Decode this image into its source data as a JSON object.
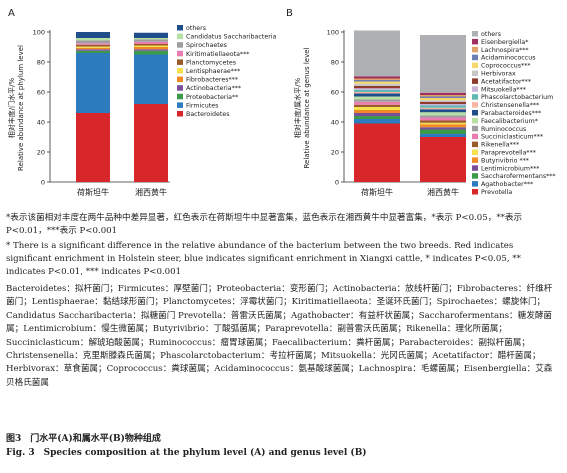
{
  "chart_data": [
    {
      "type": "bar",
      "stacked": true,
      "panel_label": "A",
      "ylabel_cn": "相对丰度/门水平/%",
      "ylabel_en": "Relative abundance at phylum level",
      "categories": [
        "荷斯坦牛",
        "湘西黄牛"
      ],
      "ylim": [
        0,
        100
      ],
      "yticks": [
        0,
        20,
        40,
        60,
        80,
        100
      ],
      "legend_position": "right",
      "series": [
        {
          "name": "Bacteroidetes",
          "values": [
            46,
            52
          ]
        },
        {
          "name": "Firmicutes",
          "values": [
            40,
            33
          ]
        },
        {
          "name": "Proteobacteria**",
          "values": [
            1.5,
            2.5
          ]
        },
        {
          "name": "Actinobacteria***",
          "values": [
            1,
            1
          ]
        },
        {
          "name": "Fibrobacteres***",
          "values": [
            1,
            1.5
          ]
        },
        {
          "name": "Lentisphaerae***",
          "values": [
            0.8,
            1
          ]
        },
        {
          "name": "Planctomycetes",
          "values": [
            1.2,
            1
          ]
        },
        {
          "name": "Kiritimatiellaeota***",
          "values": [
            1,
            1.5
          ]
        },
        {
          "name": "Spirochaetes",
          "values": [
            2,
            1.5
          ]
        },
        {
          "name": "Candidatus Saccharibacteria",
          "values": [
            1.5,
            1
          ]
        },
        {
          "name": "others",
          "values": [
            4,
            3.5
          ]
        }
      ]
    },
    {
      "type": "bar",
      "stacked": true,
      "panel_label": "B",
      "ylabel_cn": "相对丰度/属水平/%",
      "ylabel_en": "Relative abundance at genus level",
      "categories": [
        "荷斯坦牛",
        "湘西黄牛"
      ],
      "ylim": [
        0,
        100
      ],
      "yticks": [
        0,
        20,
        40,
        60,
        80,
        100
      ],
      "legend_position": "right",
      "series": [
        {
          "name": "Prevotella",
          "values": [
            39,
            30
          ]
        },
        {
          "name": "Agathobacter***",
          "values": [
            3,
            2
          ]
        },
        {
          "name": "Saccharofermentans***",
          "values": [
            2,
            3
          ]
        },
        {
          "name": "Lentimicrobium***",
          "values": [
            2,
            1.5
          ]
        },
        {
          "name": "Butyrivibrio ***",
          "values": [
            2,
            2
          ]
        },
        {
          "name": "Paraprevotella***",
          "values": [
            2,
            1
          ]
        },
        {
          "name": "Rikenella***",
          "values": [
            1.5,
            1.5
          ]
        },
        {
          "name": "Succiniclasticum***",
          "values": [
            2,
            2
          ]
        },
        {
          "name": "Ruminococcus",
          "values": [
            1.5,
            1.5
          ]
        },
        {
          "name": "Faecalibacterium*",
          "values": [
            2,
            2
          ]
        },
        {
          "name": "Parabacteroides***",
          "values": [
            2,
            2
          ]
        },
        {
          "name": "Christensenella***",
          "values": [
            1,
            1
          ]
        },
        {
          "name": "Phascolarctobacterium",
          "values": [
            1.5,
            1.5
          ]
        },
        {
          "name": "Mitsuokella***",
          "values": [
            1,
            1
          ]
        },
        {
          "name": "Acetatifactor***",
          "values": [
            1.5,
            1.5
          ]
        },
        {
          "name": "Herbivorax",
          "values": [
            1.5,
            1
          ]
        },
        {
          "name": "Coprococcus***",
          "values": [
            1.5,
            1.5
          ]
        },
        {
          "name": "Acidaminococcus",
          "values": [
            1,
            1
          ]
        },
        {
          "name": "Lachnospira***",
          "values": [
            1,
            1
          ]
        },
        {
          "name": "Eisenbergiella*",
          "values": [
            1.5,
            1.5
          ]
        },
        {
          "name": "others",
          "values": [
            30.5,
            38.5
          ]
        }
      ]
    }
  ],
  "colors": [
    "#d8272a",
    "#2d7cbf",
    "#3c9a4a",
    "#7a4f9c",
    "#f08a24",
    "#f4e14d",
    "#9b5a2a",
    "#e97db2",
    "#9e9e9e",
    "#b7e0a5",
    "#1f4e8a",
    "#f7b7a3",
    "#5fb8b2",
    "#c9b3d9",
    "#8f3b2e",
    "#c7c7c7",
    "#f5d76e",
    "#6c7fb3",
    "#e0a36a",
    "#a03060",
    "#aeb0b3"
  ],
  "text": {
    "note_cn": "*表示该菌相对丰度在两牛品种中差异显著，红色表示在荷斯坦牛中显著富集，蓝色表示在湘西黄牛中显著富集，*表示 P<0.05，**表示 P<0.01，***表示 P<0.001",
    "note_en": "* There is a significant difference in the relative abundance of the bacterium between the two breeds. Red indicates significant enrichment in Holstein steer, blue indicates significant enrichment in Xiangxi cattle, * indicates P<0.05, ** indicates P<0.01, *** indicates P<0.001",
    "abbr": "Bacteroidetes：拟杆菌门；Firmicutes：厚壁菌门；Proteobacteria：变形菌门；Actinobacteria：放线杆菌门；Fibrobacteres：纤维杆菌门；Lentisphaerae：黏结球形菌门；Planctomycetes：浮霉状菌门；Kiritimatiellaeota：圣诞环氏菌门；Spirochaetes：螺旋体门；Candidatus Saccharibacteria：拟糖菌门 Prevotella：普雷沃氏菌属；Agathobacter：有益杆状菌属；Saccharofermentans：糖发酵菌属；Lentimicrobium：慢生微菌属；Butyrivibrio：丁酸弧菌属；Paraprevotella：副普雷沃氏菌属；Rikenella：理化所菌属；Succiniclasticum：解琥珀酸菌属；Ruminococcus：瘤胃球菌属；Faecalibacterium：粪杆菌属；Parabacteroides：副拟杆菌属；Christensenella：克里斯滕森氏菌属；Phascolarctobacterium：考拉杆菌属；Mitsuokella：光冈氏菌属；Acetatifactor：醋杆菌属；Herbivorax：草食菌属；Coprococcus：粪球菌属；Acidaminococcus：氨基酸球菌属；Lachnospira：毛螺菌属；Eisenbergiella：艾森贝格氏菌属",
    "fig_title_cn": "图3　门水平(A)和属水平(B)物种组成",
    "fig_title_en": "Fig. 3　Species composition at the phylum level (A) and genus level (B)"
  }
}
